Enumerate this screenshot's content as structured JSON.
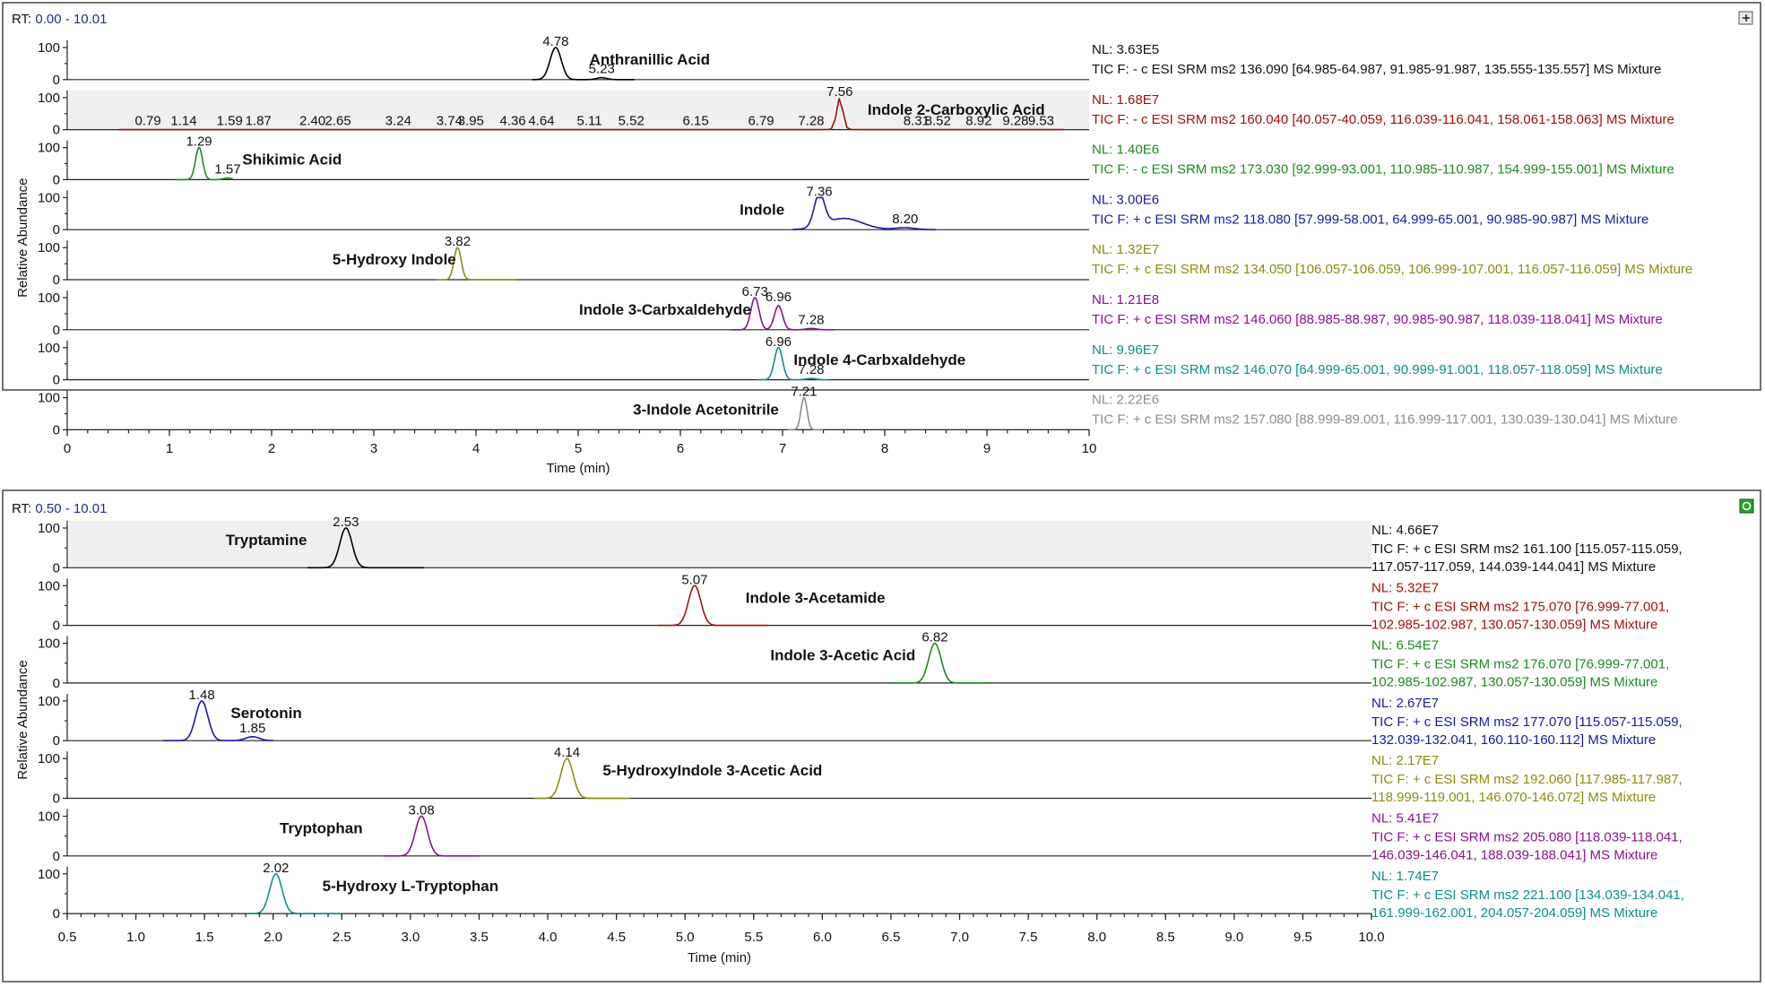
{
  "chart_data": [
    {
      "type": "line",
      "rt_label": "RT:",
      "rt_range": "0.00 - 10.01",
      "xlabel": "Time (min)",
      "ylabel": "Relative Abundance",
      "xlim": [
        0,
        10
      ],
      "x_ticks": [
        "0",
        "1",
        "2",
        "3",
        "4",
        "5",
        "6",
        "7",
        "8",
        "9",
        "10"
      ],
      "y_ticks": [
        "100",
        "0"
      ],
      "series": [
        {
          "name": "Anthranillic Acid",
          "color": "#000000",
          "nl": "NL: 3.63E5",
          "filter": "TIC F: - c ESI SRM ms2 136.090 [64.985-64.987, 91.985-91.987, 135.555-135.557]  MS Mixture",
          "range": [
            4.55,
            5.55
          ],
          "peaks": [
            {
              "rt": 4.78,
              "height": 1.0,
              "width": 0.055
            },
            {
              "rt": 5.23,
              "height": 0.06,
              "width": 0.05
            }
          ],
          "peak_labels": [
            {
              "rt": 4.78,
              "label": "4.78"
            },
            {
              "rt": 5.23,
              "label": "5.23"
            }
          ],
          "compound_label": {
            "rt": 5.7,
            "label": "Anthranillic Acid"
          },
          "shaded": false
        },
        {
          "name": "Indole 2-Carboxylic Acid",
          "color": "#a01010",
          "nl": "NL: 1.68E7",
          "filter": "TIC F: - c ESI SRM ms2 160.040 [40.057-40.059, 116.039-116.041, 158.061-158.063]  MS Mixture",
          "range": [
            0.5,
            9.75
          ],
          "peaks": [
            {
              "rt": 7.56,
              "height": 1.0,
              "width": 0.03
            }
          ],
          "peak_labels": [
            {
              "rt": 0.79,
              "label": "0.79"
            },
            {
              "rt": 1.14,
              "label": "1.14"
            },
            {
              "rt": 1.59,
              "label": "1.59"
            },
            {
              "rt": 1.87,
              "label": "1.87"
            },
            {
              "rt": 2.4,
              "label": "2.40"
            },
            {
              "rt": 2.65,
              "label": "2.65"
            },
            {
              "rt": 3.24,
              "label": "3.24"
            },
            {
              "rt": 3.74,
              "label": "3.74"
            },
            {
              "rt": 3.95,
              "label": "3.95"
            },
            {
              "rt": 4.36,
              "label": "4.36"
            },
            {
              "rt": 4.64,
              "label": "4.64"
            },
            {
              "rt": 5.11,
              "label": "5.11"
            },
            {
              "rt": 5.52,
              "label": "5.52"
            },
            {
              "rt": 6.15,
              "label": "6.15"
            },
            {
              "rt": 6.79,
              "label": "6.79"
            },
            {
              "rt": 7.28,
              "label": "7.28"
            },
            {
              "rt": 7.56,
              "label": "7.56"
            },
            {
              "rt": 8.31,
              "label": "8.31"
            },
            {
              "rt": 8.52,
              "label": "8.52"
            },
            {
              "rt": 8.92,
              "label": "8.92"
            },
            {
              "rt": 9.28,
              "label": "9.28"
            },
            {
              "rt": 9.53,
              "label": "9.53"
            }
          ],
          "compound_label": {
            "rt": 8.7,
            "label": "Indole 2-Carboxylic Acid"
          },
          "shaded": true
        },
        {
          "name": "Shikimic Acid",
          "color": "#1a8c1a",
          "nl": "NL: 1.40E6",
          "filter": "TIC F: - c ESI SRM ms2 173.030 [92.999-93.001, 110.985-110.987, 154.999-155.001]  MS Mixture",
          "range": [
            1.05,
            1.62
          ],
          "peaks": [
            {
              "rt": 1.29,
              "height": 1.0,
              "width": 0.035
            },
            {
              "rt": 1.57,
              "height": 0.05,
              "width": 0.04
            }
          ],
          "peak_labels": [
            {
              "rt": 1.29,
              "label": "1.29"
            },
            {
              "rt": 1.57,
              "label": "1.57"
            }
          ],
          "compound_label": {
            "rt": 2.2,
            "label": "Shikimic Acid"
          },
          "shaded": false
        },
        {
          "name": "Indole",
          "color": "#1a1aa0",
          "nl": "NL: 3.00E6",
          "filter": "TIC F: + c ESI SRM ms2 118.080 [57.999-58.001, 64.999-65.001, 90.985-90.987]  MS Mixture",
          "range": [
            7.1,
            8.5
          ],
          "peaks": [
            {
              "rt": 7.36,
              "height": 1.0,
              "width": 0.05
            },
            {
              "rt": 7.6,
              "height": 0.35,
              "width": 0.18
            },
            {
              "rt": 8.2,
              "height": 0.06,
              "width": 0.1
            }
          ],
          "peak_labels": [
            {
              "rt": 7.36,
              "label": "7.36"
            },
            {
              "rt": 8.2,
              "label": "8.20"
            }
          ],
          "compound_label": {
            "rt": 6.8,
            "label": "Indole"
          },
          "shaded": false
        },
        {
          "name": "5-Hydroxy Indole",
          "color": "#8c8c10",
          "nl": "NL: 1.32E7",
          "filter": "TIC F: + c ESI SRM ms2 134.050 [106.057-106.059, 106.999-107.001, 116.057-116.059]  MS Mixture",
          "range": [
            3.6,
            4.4
          ],
          "peaks": [
            {
              "rt": 3.82,
              "height": 1.0,
              "width": 0.035
            }
          ],
          "peak_labels": [
            {
              "rt": 3.82,
              "label": "3.82"
            }
          ],
          "compound_label": {
            "rt": 3.2,
            "label": "5-Hydroxy Indole"
          },
          "shaded": false
        },
        {
          "name": "Indole 3-Carbxaldehyde",
          "color": "#8c108c",
          "nl": "NL: 1.21E8",
          "filter": "TIC F: + c ESI SRM ms2 146.060 [88.985-88.987, 90.985-90.987, 118.039-118.041]  MS Mixture",
          "range": [
            6.5,
            7.5
          ],
          "peaks": [
            {
              "rt": 6.73,
              "height": 1.0,
              "width": 0.04
            },
            {
              "rt": 6.96,
              "height": 0.75,
              "width": 0.04
            },
            {
              "rt": 7.28,
              "height": 0.04,
              "width": 0.05
            }
          ],
          "peak_labels": [
            {
              "rt": 6.73,
              "label": "6.73"
            },
            {
              "rt": 6.96,
              "label": "6.96"
            },
            {
              "rt": 7.28,
              "label": "7.28"
            }
          ],
          "compound_label": {
            "rt": 5.85,
            "label": "Indole 3-Carbxaldehyde"
          },
          "shaded": false
        },
        {
          "name": "Indole 4-Carbxaldehyde",
          "color": "#108c8c",
          "nl": "NL: 9.96E7",
          "filter": "TIC F: + c ESI SRM ms2 146.070 [64.999-65.001, 90.999-91.001, 118.057-118.059]  MS Mixture",
          "range": [
            6.75,
            7.45
          ],
          "peaks": [
            {
              "rt": 6.96,
              "height": 1.0,
              "width": 0.04
            },
            {
              "rt": 7.28,
              "height": 0.04,
              "width": 0.05
            }
          ],
          "peak_labels": [
            {
              "rt": 6.96,
              "label": "6.96"
            },
            {
              "rt": 7.28,
              "label": "7.28"
            }
          ],
          "compound_label": {
            "rt": 7.95,
            "label": "Indole 4-Carbxaldehyde"
          },
          "shaded": false
        },
        {
          "name": "3-Indole Acetonitrile",
          "color": "#8c8c8c",
          "nl": "NL: 2.22E6",
          "filter": "TIC F: + c ESI SRM ms2 157.080 [88.999-89.001, 116.999-117.001, 130.039-130.041]  MS Mixture",
          "range": [
            7.05,
            7.4
          ],
          "peaks": [
            {
              "rt": 7.21,
              "height": 1.0,
              "width": 0.03
            }
          ],
          "peak_labels": [
            {
              "rt": 7.21,
              "label": "7.21"
            }
          ],
          "compound_label": {
            "rt": 6.25,
            "label": "3-Indole Acetonitrile"
          },
          "shaded": false
        }
      ]
    },
    {
      "type": "line",
      "rt_label": "RT:",
      "rt_range": "0.50 - 10.01",
      "xlabel": "Time (min)",
      "ylabel": "Relative Abundance",
      "xlim": [
        0.5,
        10.0
      ],
      "x_ticks": [
        "0.5",
        "1.0",
        "1.5",
        "2.0",
        "2.5",
        "3.0",
        "3.5",
        "4.0",
        "4.5",
        "5.0",
        "5.5",
        "6.0",
        "6.5",
        "7.0",
        "7.5",
        "8.0",
        "8.5",
        "9.0",
        "9.5",
        "10.0"
      ],
      "y_ticks": [
        "100",
        "0"
      ],
      "series": [
        {
          "name": "Tryptamine",
          "color": "#000000",
          "nl": "NL: 4.66E7",
          "filter": [
            "TIC F: + c ESI SRM ms2 161.100 [115.057-115.059,",
            "117.057-117.059, 144.039-144.041]  MS Mixture"
          ],
          "range": [
            2.25,
            3.1
          ],
          "peaks": [
            {
              "rt": 2.53,
              "height": 1.0,
              "width": 0.045
            }
          ],
          "peak_labels": [
            {
              "rt": 2.53,
              "label": "2.53"
            }
          ],
          "compound_label": {
            "rt": 1.95,
            "label": "Tryptamine"
          },
          "shaded": true
        },
        {
          "name": "Indole 3-Acetamide",
          "color": "#a01010",
          "nl": "NL: 5.32E7",
          "filter": [
            "TIC F: + c ESI SRM ms2 175.070 [76.999-77.001,",
            "102.985-102.987, 130.057-130.059]  MS Mixture"
          ],
          "range": [
            4.8,
            5.6
          ],
          "peaks": [
            {
              "rt": 5.07,
              "height": 1.0,
              "width": 0.045
            }
          ],
          "peak_labels": [
            {
              "rt": 5.07,
              "label": "5.07"
            }
          ],
          "compound_label": {
            "rt": 5.95,
            "label": "Indole 3-Acetamide"
          },
          "shaded": false
        },
        {
          "name": "Indole 3-Acetic Acid",
          "color": "#1a8c1a",
          "nl": "NL: 6.54E7",
          "filter": [
            "TIC F: + c ESI SRM ms2 176.070 [76.999-77.001,",
            "102.985-102.987, 130.057-130.059]  MS Mixture"
          ],
          "range": [
            6.5,
            7.2
          ],
          "peaks": [
            {
              "rt": 6.82,
              "height": 1.0,
              "width": 0.045
            }
          ],
          "peak_labels": [
            {
              "rt": 6.82,
              "label": "6.82"
            }
          ],
          "compound_label": {
            "rt": 6.15,
            "label": "Indole 3-Acetic Acid"
          },
          "shaded": false
        },
        {
          "name": "Serotonin",
          "color": "#1a1aa0",
          "nl": "NL: 2.67E7",
          "filter": [
            "TIC F: + c ESI SRM ms2 177.070 [115.057-115.059,",
            "132.039-132.041, 160.110-160.112]  MS Mixture"
          ],
          "range": [
            1.2,
            2.0
          ],
          "peaks": [
            {
              "rt": 1.48,
              "height": 1.0,
              "width": 0.045
            },
            {
              "rt": 1.85,
              "height": 0.1,
              "width": 0.05
            }
          ],
          "peak_labels": [
            {
              "rt": 1.48,
              "label": "1.48"
            },
            {
              "rt": 1.85,
              "label": "1.85"
            }
          ],
          "compound_label": {
            "rt": 1.95,
            "label": "Serotonin"
          },
          "shaded": false
        },
        {
          "name": "5-HydroxyIndole 3-Acetic Acid",
          "color": "#8c8c10",
          "nl": "NL: 2.17E7",
          "filter": [
            "TIC F: + c ESI SRM ms2 192.060 [117.985-117.987,",
            "118.999-119.001, 146.070-146.072]  MS Mixture"
          ],
          "range": [
            3.9,
            4.6
          ],
          "peaks": [
            {
              "rt": 4.14,
              "height": 1.0,
              "width": 0.045
            }
          ],
          "peak_labels": [
            {
              "rt": 4.14,
              "label": "4.14"
            }
          ],
          "compound_label": {
            "rt": 5.2,
            "label": "5-HydroxyIndole 3-Acetic Acid"
          },
          "shaded": false
        },
        {
          "name": "Tryptophan",
          "color": "#8c108c",
          "nl": "NL: 5.41E7",
          "filter": [
            "TIC F: + c ESI SRM ms2 205.080 [118.039-118.041,",
            "146.039-146.041, 188.039-188.041]  MS Mixture"
          ],
          "range": [
            2.8,
            3.5
          ],
          "peaks": [
            {
              "rt": 3.08,
              "height": 1.0,
              "width": 0.045
            }
          ],
          "peak_labels": [
            {
              "rt": 3.08,
              "label": "3.08"
            }
          ],
          "compound_label": {
            "rt": 2.35,
            "label": "Tryptophan"
          },
          "shaded": false
        },
        {
          "name": "5-Hydroxy L-Tryptophan",
          "color": "#108c8c",
          "nl": "NL: 1.74E7",
          "filter": [
            "TIC F: + c ESI SRM ms2 221.100 [134.039-134.041,",
            "161.999-162.001, 204.057-204.059]  MS Mixture"
          ],
          "range": [
            1.8,
            2.5
          ],
          "peaks": [
            {
              "rt": 2.02,
              "height": 1.0,
              "width": 0.045
            }
          ],
          "peak_labels": [
            {
              "rt": 2.02,
              "label": "2.02"
            }
          ],
          "compound_label": {
            "rt": 3.0,
            "label": "5-Hydroxy L-Tryptophan"
          },
          "shaded": false
        }
      ]
    }
  ]
}
